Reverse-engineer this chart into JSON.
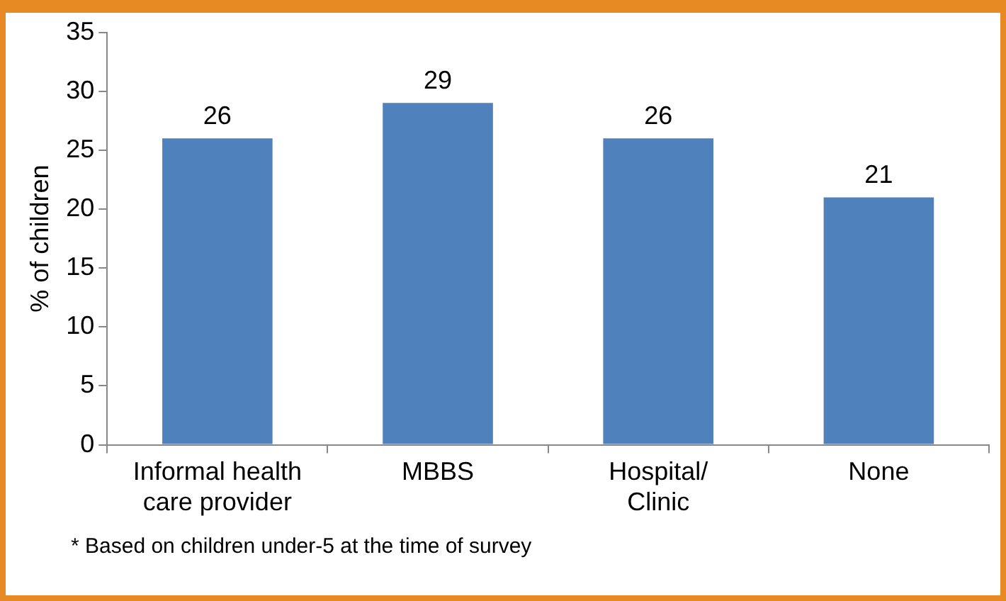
{
  "chart_data": {
    "type": "bar",
    "ylabel": "% of children",
    "categories": [
      "Informal health care provider",
      "MBBS",
      "Hospital/ Clinic",
      "None"
    ],
    "values": [
      26,
      29,
      26,
      21
    ],
    "color": "#4f81bd",
    "ylim": [
      0,
      35
    ],
    "yticks": [
      0,
      5,
      10,
      15,
      20,
      25,
      30,
      35
    ],
    "grid": false,
    "legend": false,
    "data_labels": true,
    "annotations": [
      "* Based on children under-5 at the time of survey"
    ]
  }
}
